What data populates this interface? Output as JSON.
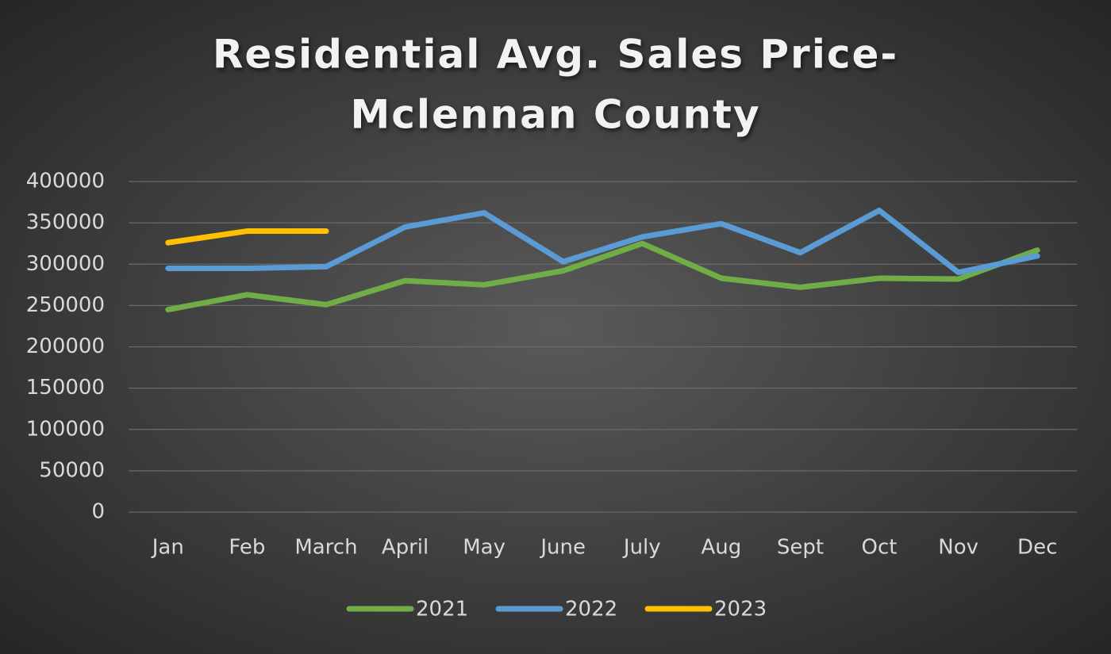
{
  "chart_data": {
    "type": "line",
    "title": [
      "Residential Avg. Sales Price-",
      "Mclennan County"
    ],
    "categories": [
      "Jan",
      "Feb",
      "March",
      "April",
      "May",
      "June",
      "July",
      "Aug",
      "Sept",
      "Oct",
      "Nov",
      "Dec"
    ],
    "series": [
      {
        "name": "2021",
        "color": "#70ad47",
        "values": [
          245000,
          263000,
          251000,
          280000,
          275000,
          292000,
          325000,
          283000,
          272000,
          283000,
          282000,
          317000
        ]
      },
      {
        "name": "2022",
        "color": "#5b9bd5",
        "values": [
          295000,
          295000,
          297000,
          345000,
          362000,
          303000,
          333000,
          349000,
          314000,
          365000,
          290000,
          310000
        ]
      },
      {
        "name": "2023",
        "color": "#ffc000",
        "values": [
          326000,
          340000,
          340000,
          null,
          null,
          null,
          null,
          null,
          null,
          null,
          null,
          null
        ]
      }
    ],
    "ylim": [
      0,
      400000
    ],
    "yticks": [
      0,
      50000,
      100000,
      150000,
      200000,
      250000,
      300000,
      350000,
      400000
    ],
    "grid": true,
    "legend": "bottom"
  }
}
